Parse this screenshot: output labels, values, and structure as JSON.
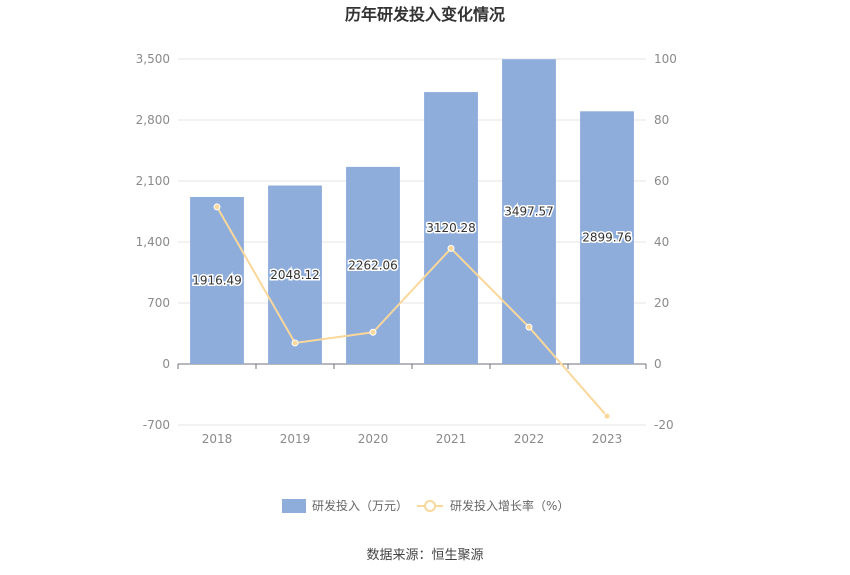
{
  "chart_data": {
    "type": "bar",
    "title": "历年研发投入变化情况",
    "categories": [
      "2018",
      "2019",
      "2020",
      "2021",
      "2022",
      "2023"
    ],
    "series": [
      {
        "name": "研发投入（万元）",
        "type": "bar",
        "axis": "left",
        "values": [
          1916.49,
          2048.12,
          2262.06,
          3120.28,
          3497.57,
          2899.76
        ],
        "labels": [
          "1916.49",
          "2048.12",
          "2262.06",
          "3120.28",
          "3497.57",
          "2899.76"
        ],
        "color": "#8eaddb"
      },
      {
        "name": "研发投入增长率（%）",
        "type": "line",
        "axis": "right",
        "values": [
          51.5,
          6.9,
          10.4,
          37.9,
          12.1,
          -17.1
        ],
        "color": "#fad79a"
      }
    ],
    "y_left": {
      "min": -700,
      "max": 3500,
      "ticks": [
        "3,500",
        "2,800",
        "2,100",
        "1,400",
        "700",
        "0",
        "-700"
      ],
      "tick_values": [
        3500,
        2800,
        2100,
        1400,
        700,
        0,
        -700
      ]
    },
    "y_right": {
      "min": -20,
      "max": 100,
      "ticks": [
        "100",
        "80",
        "60",
        "40",
        "20",
        "0",
        "-20"
      ],
      "tick_values": [
        100,
        80,
        60,
        40,
        20,
        0,
        -20
      ]
    },
    "grid": true,
    "legend_position": "bottom"
  },
  "source": "数据来源：恒生聚源"
}
